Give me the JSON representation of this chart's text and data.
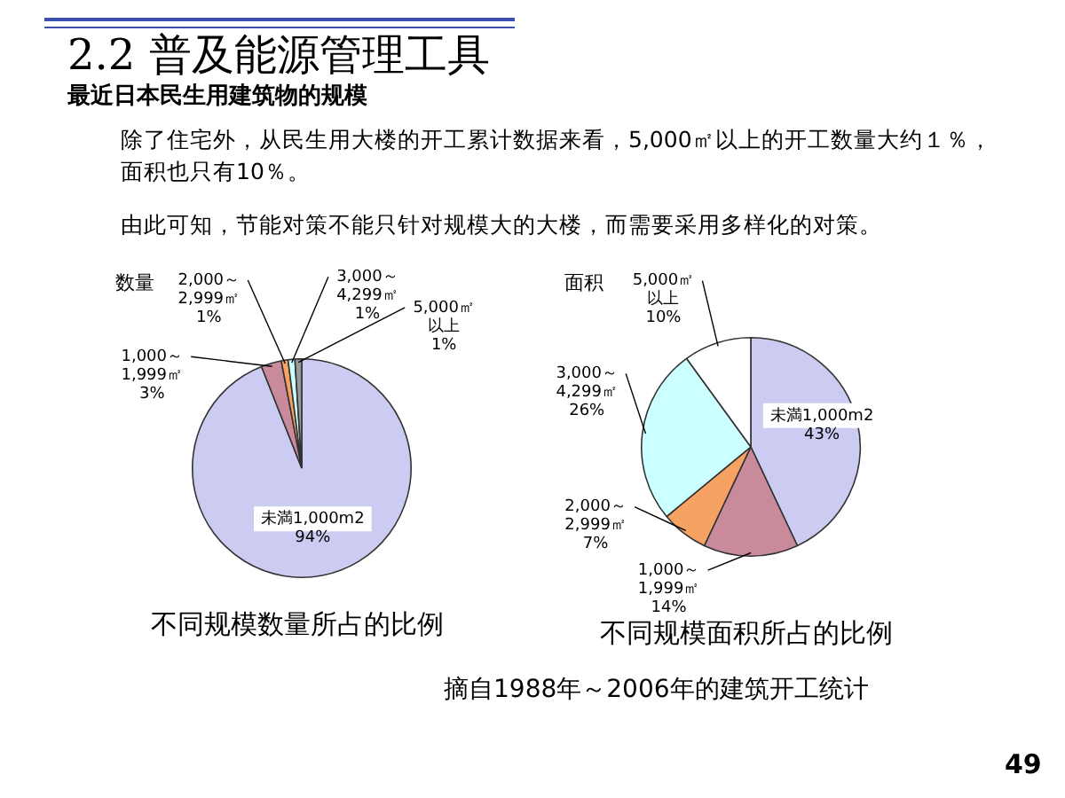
{
  "chart_data": [
    {
      "type": "other",
      "title": "2.2 普及能源管理工具",
      "subtitle": "最近日本民生用建筑物的规模",
      "annotations": [
        "除了住宅外，从民生用大楼的开工累计数据来看，5,000㎡以上的开工数量大约１％，面积也只有10％。",
        "由此可知，节能对策不能只针对规模大的大楼，而需要采用多样化的对策。",
        "摘自1988年～2006年的建筑开工统计",
        "49"
      ]
    },
    {
      "type": "pie",
      "title": "数量",
      "annotations": [
        "不同规模数量所占的比例"
      ],
      "categories": [
        "未満1,000m2",
        "1,000～\n1,999㎡",
        "2,000～\n2,999㎡",
        "3,000～\n4,299㎡",
        "5,000㎡以上"
      ],
      "values": [
        94,
        3,
        1,
        1,
        1
      ],
      "value_labels": [
        "94%",
        "3%",
        "1%",
        "1%",
        "1%"
      ],
      "colors": [
        "#ccccf2",
        "#c98a9c",
        "#f5a263",
        "#ccffff",
        "#9a9a9a"
      ]
    },
    {
      "type": "pie",
      "title": "面积",
      "annotations": [
        "不同规模面积所占的比例"
      ],
      "categories": [
        "未満1,000m2",
        "1,000～\n1,999㎡",
        "2,000～\n2,999㎡",
        "3,000～\n4,299㎡",
        "5,000㎡以上"
      ],
      "values": [
        43,
        14,
        7,
        26,
        10
      ],
      "value_labels": [
        "43%",
        "14%",
        "7%",
        "26%",
        "10%"
      ],
      "colors": [
        "#ccccf2",
        "#c98a9c",
        "#f5a263",
        "#ccffff",
        "#ffffff"
      ]
    }
  ]
}
